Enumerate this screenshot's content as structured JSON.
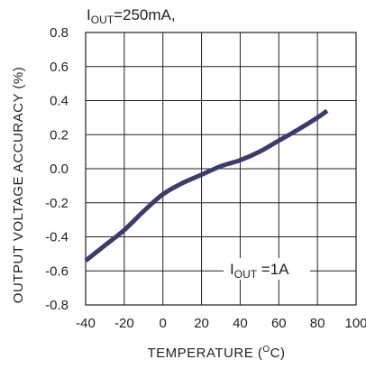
{
  "chart_data": {
    "type": "line",
    "title": "",
    "xlabel": {
      "main": "TEMPERATURE (",
      "sup": "O",
      "tail": "C)"
    },
    "ylabel": "OUTPUT VOLTAGE ACCURACY (%)",
    "xlim": [
      -40,
      100
    ],
    "ylim": [
      -0.8,
      0.8
    ],
    "x_ticks": [
      "-40",
      "-20",
      "0",
      "20",
      "40",
      "60",
      "80",
      "100"
    ],
    "y_ticks": [
      "0.8",
      "0.6",
      "0.4",
      "0.2",
      "0.0",
      "-0.2",
      "-0.4",
      "-0.6",
      "-0.8"
    ],
    "grid": true,
    "series": [
      {
        "name": "IOUT=1A",
        "color": "#3b3c6e",
        "x": [
          -40,
          -30,
          -20,
          -10,
          0,
          10,
          20,
          30,
          40,
          50,
          60,
          70,
          80,
          85
        ],
        "y": [
          -0.54,
          -0.45,
          -0.36,
          -0.25,
          -0.15,
          -0.085,
          -0.035,
          0.015,
          0.05,
          0.1,
          0.165,
          0.23,
          0.3,
          0.34
        ]
      }
    ],
    "annotations": [
      {
        "text_main": "I",
        "text_sub": "OUT",
        "text_tail": "=250mA,"
      },
      {
        "text_main": "I",
        "text_sub": "OUT",
        "text_tail": " =1A"
      }
    ]
  }
}
